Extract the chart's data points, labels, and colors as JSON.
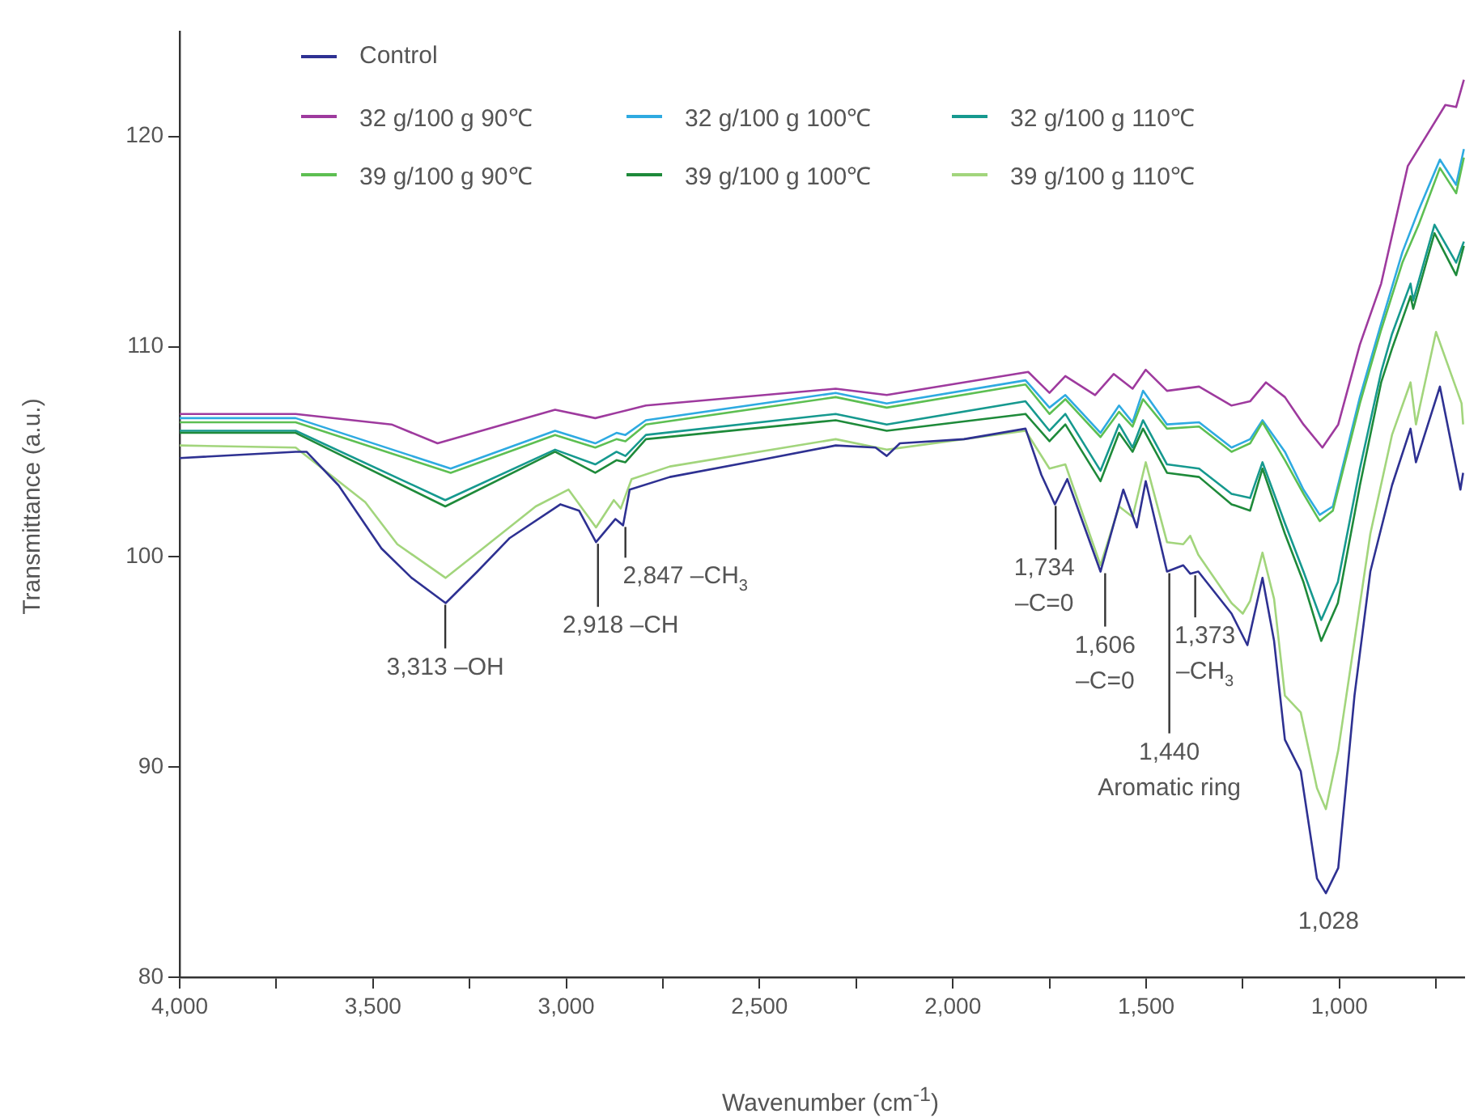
{
  "chart_data": {
    "type": "line",
    "xlabel": "Wavenumber (cm$^{-1}$)",
    "ylabel": "Transmittance (a.u.)",
    "xlim": [
      4000,
      675
    ],
    "ylim": [
      80,
      125
    ],
    "xticks": [
      {
        "value": 4000,
        "label": "4,000"
      },
      {
        "value": 3750,
        "label": null
      },
      {
        "value": 3500,
        "label": "3,500"
      },
      {
        "value": 3250,
        "label": null
      },
      {
        "value": 3000,
        "label": "3,000"
      },
      {
        "value": 2750,
        "label": null
      },
      {
        "value": 2500,
        "label": "2,500"
      },
      {
        "value": 2250,
        "label": null
      },
      {
        "value": 2000,
        "label": "2,000"
      },
      {
        "value": 1750,
        "label": null
      },
      {
        "value": 1500,
        "label": "1,500"
      },
      {
        "value": 1250,
        "label": null
      },
      {
        "value": 1000,
        "label": "1,000"
      },
      {
        "value": 750,
        "label": null
      }
    ],
    "yticks": [
      80,
      90,
      100,
      110,
      120
    ],
    "legend": "top left",
    "series": [
      {
        "name": "Control",
        "color": "#2e3192",
        "x": [
          4000,
          3700,
          3672,
          3589,
          3478,
          3400,
          3312,
          3230,
          3146,
          3015,
          2967,
          2923,
          2873,
          2853,
          2836,
          2732,
          2500,
          2303,
          2200,
          2171,
          2137,
          1971,
          1812,
          1771,
          1736,
          1704,
          1618,
          1559,
          1524,
          1501,
          1446,
          1404,
          1386,
          1365,
          1279,
          1238,
          1199,
          1169,
          1141,
          1100,
          1058,
          1035,
          1003,
          961,
          920,
          864,
          816,
          802,
          740,
          687,
          680
        ],
        "values": [
          104.7,
          105.0,
          105.0,
          103.4,
          100.4,
          99.0,
          97.8,
          99.3,
          100.9,
          102.5,
          102.2,
          100.7,
          101.8,
          101.5,
          103.2,
          103.8,
          104.6,
          105.3,
          105.2,
          104.8,
          105.4,
          105.6,
          106.1,
          103.9,
          102.5,
          103.7,
          99.3,
          103.2,
          101.4,
          103.6,
          99.3,
          99.6,
          99.2,
          99.3,
          97.3,
          95.8,
          99.0,
          96.0,
          91.3,
          89.8,
          84.7,
          84.0,
          85.2,
          93.4,
          99.3,
          103.4,
          106.1,
          104.5,
          108.1,
          103.2,
          104.0
        ]
      },
      {
        "name": "32 g/100 g 90℃",
        "color": "#9e3a9e",
        "x": [
          4000,
          3700,
          3452,
          3333,
          3029,
          2925,
          2794,
          2303,
          2171,
          1805,
          1750,
          1709,
          1632,
          1584,
          1535,
          1501,
          1446,
          1363,
          1279,
          1231,
          1190,
          1141,
          1093,
          1044,
          1003,
          947,
          892,
          823,
          726,
          698,
          678
        ],
        "values": [
          106.8,
          106.8,
          106.3,
          105.4,
          107.0,
          106.6,
          107.2,
          108.0,
          107.7,
          108.8,
          107.8,
          108.6,
          107.7,
          108.7,
          108.0,
          108.9,
          107.9,
          108.1,
          107.2,
          107.4,
          108.3,
          107.6,
          106.3,
          105.2,
          106.3,
          110.1,
          113.0,
          118.6,
          121.5,
          121.4,
          122.7
        ]
      },
      {
        "name": "39 g/100 g 90℃",
        "color": "#5dbf52",
        "x": [
          4000,
          3700,
          3299,
          3029,
          2925,
          2870,
          2847,
          2794,
          2303,
          2171,
          1812,
          1750,
          1709,
          1618,
          1570,
          1535,
          1508,
          1446,
          1363,
          1279,
          1231,
          1199,
          1141,
          1093,
          1051,
          1017,
          947,
          892,
          837,
          795,
          740,
          698,
          678
        ],
        "values": [
          106.4,
          106.4,
          104.0,
          105.8,
          105.2,
          105.6,
          105.5,
          106.3,
          107.6,
          107.1,
          108.2,
          106.8,
          107.5,
          105.7,
          106.9,
          106.2,
          107.5,
          106.1,
          106.2,
          105.0,
          105.4,
          106.4,
          104.6,
          103.0,
          101.7,
          102.2,
          107.3,
          110.8,
          114.0,
          115.8,
          118.5,
          117.3,
          119.0
        ]
      },
      {
        "name": "32 g/100 g 100℃",
        "color": "#2eaae1",
        "x": [
          4000,
          3700,
          3299,
          3029,
          2925,
          2870,
          2847,
          2794,
          2303,
          2171,
          1812,
          1750,
          1709,
          1618,
          1570,
          1535,
          1508,
          1446,
          1363,
          1279,
          1231,
          1199,
          1141,
          1093,
          1051,
          1017,
          947,
          892,
          837,
          795,
          740,
          698,
          678
        ],
        "values": [
          106.6,
          106.6,
          104.2,
          106.0,
          105.4,
          105.9,
          105.8,
          106.5,
          107.8,
          107.3,
          108.4,
          107.1,
          107.7,
          105.9,
          107.2,
          106.4,
          107.9,
          106.3,
          106.4,
          105.2,
          105.6,
          106.5,
          105.0,
          103.2,
          102.0,
          102.4,
          107.6,
          111.1,
          114.5,
          116.5,
          118.9,
          117.7,
          119.4
        ]
      },
      {
        "name": "39 g/100 g 100℃",
        "color": "#1e8a3a",
        "x": [
          4000,
          3700,
          3313,
          3029,
          2925,
          2870,
          2847,
          2794,
          2303,
          2171,
          1812,
          1750,
          1709,
          1618,
          1570,
          1535,
          1508,
          1446,
          1363,
          1279,
          1231,
          1199,
          1141,
          1093,
          1047,
          1004,
          947,
          892,
          864,
          816,
          809,
          754,
          698,
          678
        ],
        "values": [
          105.9,
          105.9,
          102.4,
          105.0,
          104.0,
          104.6,
          104.5,
          105.6,
          106.5,
          106.0,
          106.8,
          105.5,
          106.3,
          103.6,
          105.9,
          105.0,
          106.1,
          104.0,
          103.8,
          102.5,
          102.2,
          104.2,
          101.1,
          98.8,
          96.0,
          97.8,
          103.4,
          108.3,
          109.9,
          112.4,
          111.8,
          115.4,
          113.4,
          114.8
        ]
      },
      {
        "name": "32 g/100 g 110℃",
        "color": "#16998f",
        "x": [
          4000,
          3700,
          3313,
          3029,
          2925,
          2870,
          2847,
          2794,
          2303,
          2171,
          1812,
          1750,
          1709,
          1618,
          1570,
          1535,
          1508,
          1446,
          1363,
          1279,
          1231,
          1199,
          1141,
          1093,
          1047,
          1004,
          947,
          892,
          864,
          816,
          809,
          754,
          698,
          678
        ],
        "values": [
          106.0,
          106.0,
          102.7,
          105.1,
          104.4,
          105.0,
          104.8,
          105.8,
          106.8,
          106.3,
          107.4,
          106.0,
          106.8,
          104.1,
          106.3,
          105.2,
          106.5,
          104.4,
          104.2,
          103.0,
          102.8,
          104.5,
          101.6,
          99.3,
          97.0,
          98.8,
          104.2,
          108.8,
          110.6,
          113.0,
          112.2,
          115.8,
          114.0,
          115.0
        ]
      },
      {
        "name": "39 g/100 g 110℃",
        "color": "#a2d57c",
        "x": [
          4000,
          3700,
          3520,
          3437,
          3312,
          3216,
          3079,
          2994,
          2923,
          2877,
          2859,
          2831,
          2732,
          2303,
          2171,
          1812,
          1750,
          1709,
          1618,
          1570,
          1535,
          1501,
          1446,
          1404,
          1386,
          1365,
          1279,
          1250,
          1231,
          1199,
          1169,
          1141,
          1100,
          1058,
          1035,
          1003,
          961,
          920,
          864,
          816,
          802,
          750,
          684,
          680
        ],
        "values": [
          105.3,
          105.2,
          102.6,
          100.6,
          99.0,
          100.4,
          102.4,
          103.2,
          101.4,
          102.7,
          102.3,
          103.7,
          104.3,
          105.6,
          105.1,
          106.0,
          104.2,
          104.4,
          99.6,
          102.4,
          101.9,
          104.5,
          100.7,
          100.6,
          101.0,
          100.1,
          97.8,
          97.3,
          97.9,
          100.2,
          98.0,
          93.4,
          92.6,
          89.0,
          88.0,
          90.8,
          96.0,
          101.1,
          105.8,
          108.3,
          106.3,
          110.7,
          107.3,
          106.3
        ]
      }
    ],
    "annotations": [
      {
        "text": "3,313 –OH",
        "x": 3313,
        "y": 97.8
      },
      {
        "text": "2,918 –CH",
        "x": 2918,
        "y": 100.7
      },
      {
        "text": "2,847 –CH$_{3}$",
        "x": 2847,
        "y": 101.5
      },
      {
        "text": "1,734\n–C=0",
        "x": 1734,
        "y": 102.5
      },
      {
        "text": "1,606\n–C=0",
        "x": 1606,
        "y": 99.3
      },
      {
        "text": "1,440\nAromatic ring",
        "x": 1440,
        "y": 99.3
      },
      {
        "text": "1,373\n–CH$_{3}$",
        "x": 1373,
        "y": 99.2
      },
      {
        "text": "1,028",
        "x": 1028,
        "y": 84.0
      }
    ]
  }
}
